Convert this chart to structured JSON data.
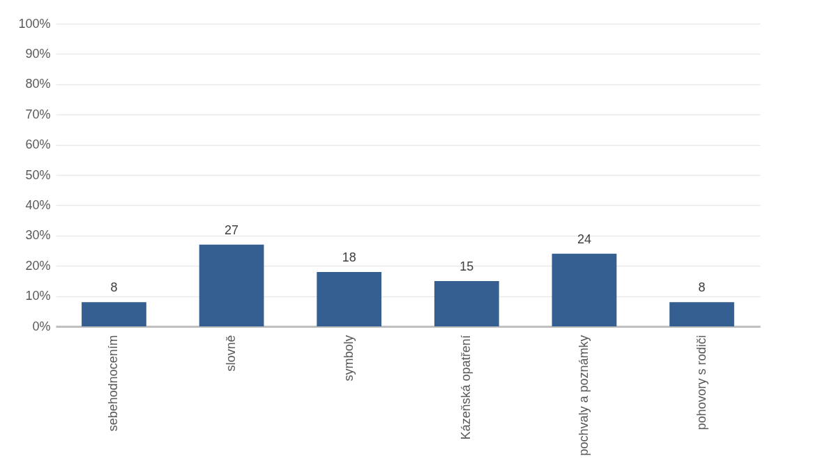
{
  "chart_data": {
    "type": "bar",
    "categories": [
      "sebehodnocením",
      "slovně",
      "symboly",
      "Kázeňská opatření",
      "pochvaly a poznámky",
      "pohovory s rodiči"
    ],
    "values": [
      8,
      27,
      18,
      15,
      24,
      8
    ],
    "color": "#355f91",
    "ylim": [
      0,
      100
    ],
    "yticks": [
      {
        "value": 0,
        "label": "0%"
      },
      {
        "value": 10,
        "label": "10%"
      },
      {
        "value": 20,
        "label": "20%"
      },
      {
        "value": 30,
        "label": "30%"
      },
      {
        "value": 40,
        "label": "40%"
      },
      {
        "value": 50,
        "label": "50%"
      },
      {
        "value": 60,
        "label": "60%"
      },
      {
        "value": 70,
        "label": "70%"
      },
      {
        "value": 80,
        "label": "80%"
      },
      {
        "value": 90,
        "label": "90%"
      },
      {
        "value": 100,
        "label": "100%"
      }
    ],
    "grid": "y",
    "data_labels": true
  }
}
